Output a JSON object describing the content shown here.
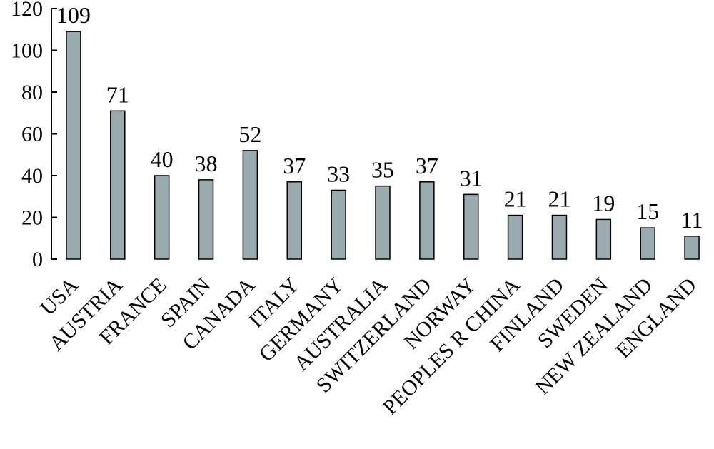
{
  "chart_data": {
    "type": "bar",
    "title": "",
    "xlabel": "",
    "ylabel": "",
    "ylim": [
      0,
      120
    ],
    "yticks": [
      0,
      20,
      40,
      60,
      80,
      100,
      120
    ],
    "grid": false,
    "bar_color": "#9aabb0",
    "categories": [
      "USA",
      "AUSTRIA",
      "FRANCE",
      "SPAIN",
      "CANADA",
      "ITALY",
      "GERMANY",
      "AUSTRALIA",
      "SWITZERLAND",
      "NORWAY",
      "PEOPLES R CHINA",
      "FINLAND",
      "SWEDEN",
      "NEW ZEALAND",
      "ENGLAND"
    ],
    "values": [
      109,
      71,
      40,
      38,
      52,
      37,
      33,
      35,
      37,
      31,
      21,
      21,
      19,
      15,
      11
    ]
  }
}
